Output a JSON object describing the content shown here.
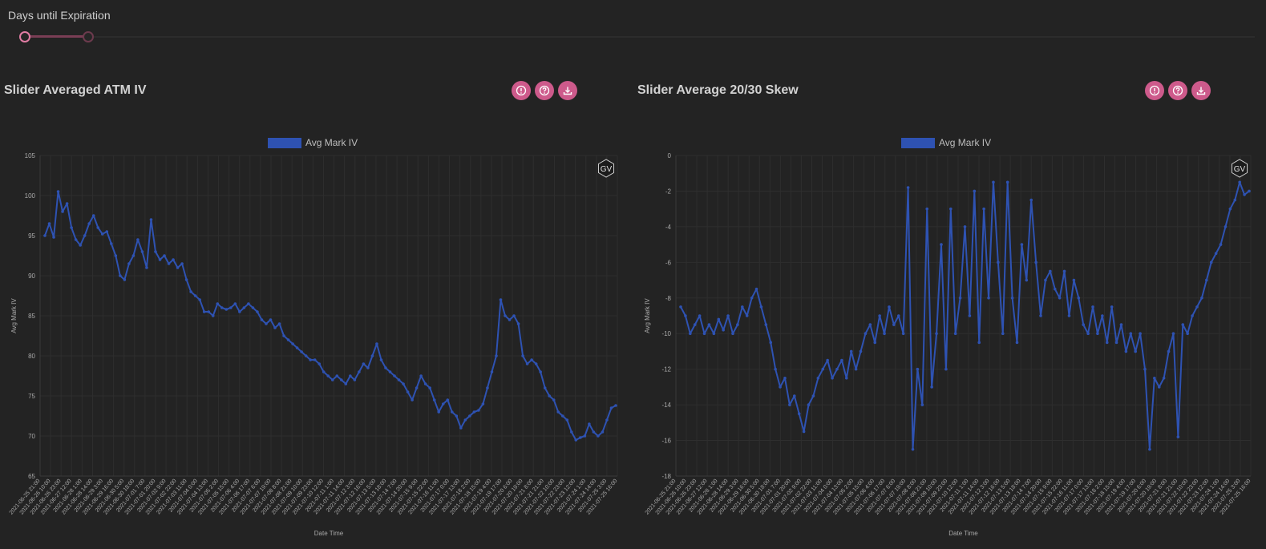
{
  "slider": {
    "label": "Days until Expiration"
  },
  "colors": {
    "accent": "#cd5a8b",
    "series": "#2e52b2",
    "grid": "#2e2e2e"
  },
  "icons": [
    "info-icon",
    "help-icon",
    "download-icon"
  ],
  "panels": [
    {
      "title": "Slider Averaged ATM IV"
    },
    {
      "title": "Slider Average 20/30 Skew"
    }
  ],
  "chart_data": [
    {
      "type": "line",
      "title": "",
      "legend": {
        "labels": [
          "Avg Mark IV"
        ],
        "placement": "top-center"
      },
      "xlabel": "Date Time",
      "ylabel": "Avg Mark IV",
      "ylim": [
        65,
        105
      ],
      "yticks": [
        105,
        100,
        95,
        90,
        85,
        80,
        75,
        70,
        65
      ],
      "grid": true,
      "x_tick_labels": [
        "2021-06-25 21:00",
        "2021-06-26 10:00",
        "2021-06-26 23:00",
        "2021-06-27 12:00",
        "2021-06-28 1:00",
        "2021-06-28 14:00",
        "2021-06-29 3:00",
        "2021-06-29 16:00",
        "2021-06-30 5:00",
        "2021-06-30 18:00",
        "2021-07-01 7:00",
        "2021-07-01 20:00",
        "2021-07-02 9:00",
        "2021-07-02 22:00",
        "2021-07-03 11:00",
        "2021-07-04 0:00",
        "2021-07-04 13:00",
        "2021-07-05 2:00",
        "2021-07-05 15:00",
        "2021-07-06 4:00",
        "2021-07-06 17:00",
        "2021-07-07 6:00",
        "2021-07-07 19:00",
        "2021-07-08 8:00",
        "2021-07-08 21:00",
        "2021-07-09 10:00",
        "2021-07-09 23:00",
        "2021-07-10 12:00",
        "2021-07-11 1:00",
        "2021-07-11 14:00",
        "2021-07-12 3:00",
        "2021-07-12 16:00",
        "2021-07-13 5:00",
        "2021-07-13 18:00",
        "2021-07-14 7:00",
        "2021-07-14 20:00",
        "2021-07-15 9:00",
        "2021-07-15 22:00",
        "2021-07-16 11:00",
        "2021-07-17 0:00",
        "2021-07-17 13:00",
        "2021-07-18 2:00",
        "2021-07-18 15:00",
        "2021-07-19 4:00",
        "2021-07-19 17:00",
        "2021-07-20 6:00",
        "2021-07-20 19:00",
        "2021-07-21 8:00",
        "2021-07-21 21:00",
        "2021-07-22 10:00",
        "2021-07-22 23:00",
        "2021-07-23 12:00",
        "2021-07-24 1:00",
        "2021-07-24 14:00",
        "2021-07-25 3:00",
        "2021-07-25 16:00"
      ],
      "series": [
        {
          "name": "Avg Mark IV",
          "values": [
            95,
            96.5,
            94.8,
            100.5,
            98,
            99,
            96,
            94.5,
            93.8,
            95,
            96.5,
            97.5,
            96,
            95.2,
            95.5,
            94,
            92.5,
            90,
            89.5,
            91.5,
            92.5,
            94.5,
            93,
            91,
            97,
            93,
            92,
            92.5,
            91.5,
            92,
            91,
            91.5,
            89.5,
            88,
            87.5,
            87,
            85.5,
            85.5,
            85,
            86.5,
            86,
            85.8,
            86,
            86.5,
            85.5,
            86,
            86.5,
            86,
            85.5,
            84.5,
            84,
            84.5,
            83.5,
            84,
            82.5,
            82,
            81.5,
            81,
            80.5,
            80,
            79.5,
            79.5,
            79,
            78,
            77.5,
            77,
            77.5,
            77,
            76.5,
            77.5,
            77,
            78,
            79,
            78.5,
            80,
            81.5,
            79.5,
            78.5,
            78,
            77.5,
            77,
            76.5,
            75.5,
            74.5,
            76,
            77.5,
            76.5,
            76,
            74.5,
            73,
            74,
            74.5,
            73,
            72.5,
            71,
            72,
            72.5,
            73,
            73.2,
            74,
            76,
            78,
            80,
            87,
            85,
            84.5,
            85,
            84,
            80,
            79,
            79.5,
            79,
            78,
            76,
            75,
            74.5,
            73,
            72.5,
            72,
            70.5,
            69.5,
            69.8,
            70,
            71.5,
            70.5,
            70,
            70.5,
            72,
            73.5,
            73.8
          ]
        }
      ]
    },
    {
      "type": "line",
      "title": "",
      "legend": {
        "labels": [
          "Avg Mark IV"
        ],
        "placement": "top-center"
      },
      "xlabel": "Date Time",
      "ylabel": "Avg Mark IV",
      "ylim": [
        -18,
        0
      ],
      "yticks": [
        0,
        -2,
        -4,
        -6,
        -8,
        -10,
        -12,
        -14,
        -16,
        -18
      ],
      "grid": true,
      "x_tick_labels": [
        "2021-06-25 21:00",
        "2021-06-26 10:00",
        "2021-06-26 23:00",
        "2021-06-27 12:00",
        "2021-06-28 1:00",
        "2021-06-28 14:00",
        "2021-06-29 3:00",
        "2021-06-29 16:00",
        "2021-06-30 5:00",
        "2021-06-30 18:00",
        "2021-07-01 7:00",
        "2021-07-01 20:00",
        "2021-07-02 9:00",
        "2021-07-02 22:00",
        "2021-07-03 11:00",
        "2021-07-04 0:00",
        "2021-07-04 13:00",
        "2021-07-05 2:00",
        "2021-07-05 15:00",
        "2021-07-06 4:00",
        "2021-07-06 17:00",
        "2021-07-07 6:00",
        "2021-07-07 19:00",
        "2021-07-08 8:00",
        "2021-07-08 21:00",
        "2021-07-09 10:00",
        "2021-07-09 23:00",
        "2021-07-10 12:00",
        "2021-07-11 1:00",
        "2021-07-11 14:00",
        "2021-07-12 3:00",
        "2021-07-12 16:00",
        "2021-07-13 5:00",
        "2021-07-13 18:00",
        "2021-07-14 7:00",
        "2021-07-14 20:00",
        "2021-07-15 9:00",
        "2021-07-15 22:00",
        "2021-07-16 11:00",
        "2021-07-17 0:00",
        "2021-07-17 13:00",
        "2021-07-18 2:00",
        "2021-07-18 15:00",
        "2021-07-19 4:00",
        "2021-07-19 17:00",
        "2021-07-20 6:00",
        "2021-07-20 19:00",
        "2021-07-21 8:00",
        "2021-07-21 21:00",
        "2021-07-22 10:00",
        "2021-07-22 23:00",
        "2021-07-23 12:00",
        "2021-07-24 1:00",
        "2021-07-24 14:00",
        "2021-07-25 3:00",
        "2021-07-25 16:00"
      ],
      "series": [
        {
          "name": "Avg Mark IV",
          "values": [
            -8.5,
            -9,
            -10,
            -9.5,
            -9,
            -10,
            -9.5,
            -10,
            -9.2,
            -9.8,
            -9,
            -10,
            -9.5,
            -8.5,
            -9,
            -8,
            -7.5,
            -8.5,
            -9.5,
            -10.5,
            -12,
            -13,
            -12.5,
            -14,
            -13.5,
            -14.5,
            -15.5,
            -14,
            -13.5,
            -12.5,
            -12,
            -11.5,
            -12.5,
            -12,
            -11.5,
            -12.5,
            -11,
            -12,
            -11,
            -10,
            -9.5,
            -10.5,
            -9,
            -10,
            -8.5,
            -9.5,
            -9,
            -10,
            -1.8,
            -16.5,
            -12,
            -14,
            -3,
            -13,
            -10,
            -5,
            -12,
            -3,
            -10,
            -8,
            -4,
            -9,
            -2,
            -10.5,
            -3,
            -8,
            -1.5,
            -6,
            -10,
            -1.5,
            -8,
            -10.5,
            -5,
            -7,
            -2.5,
            -6,
            -9,
            -7,
            -6.5,
            -7.5,
            -8,
            -6.5,
            -9,
            -7,
            -8,
            -9.5,
            -10,
            -8.5,
            -10,
            -9,
            -10.5,
            -8.5,
            -10.5,
            -9.5,
            -11,
            -10,
            -11,
            -10,
            -12,
            -16.5,
            -12.5,
            -13,
            -12.5,
            -11,
            -10,
            -15.8,
            -9.5,
            -10,
            -9,
            -8.5,
            -8,
            -7,
            -6,
            -5.5,
            -5,
            -4,
            -3,
            -2.5,
            -1.5,
            -2.2,
            -2
          ]
        }
      ]
    }
  ]
}
